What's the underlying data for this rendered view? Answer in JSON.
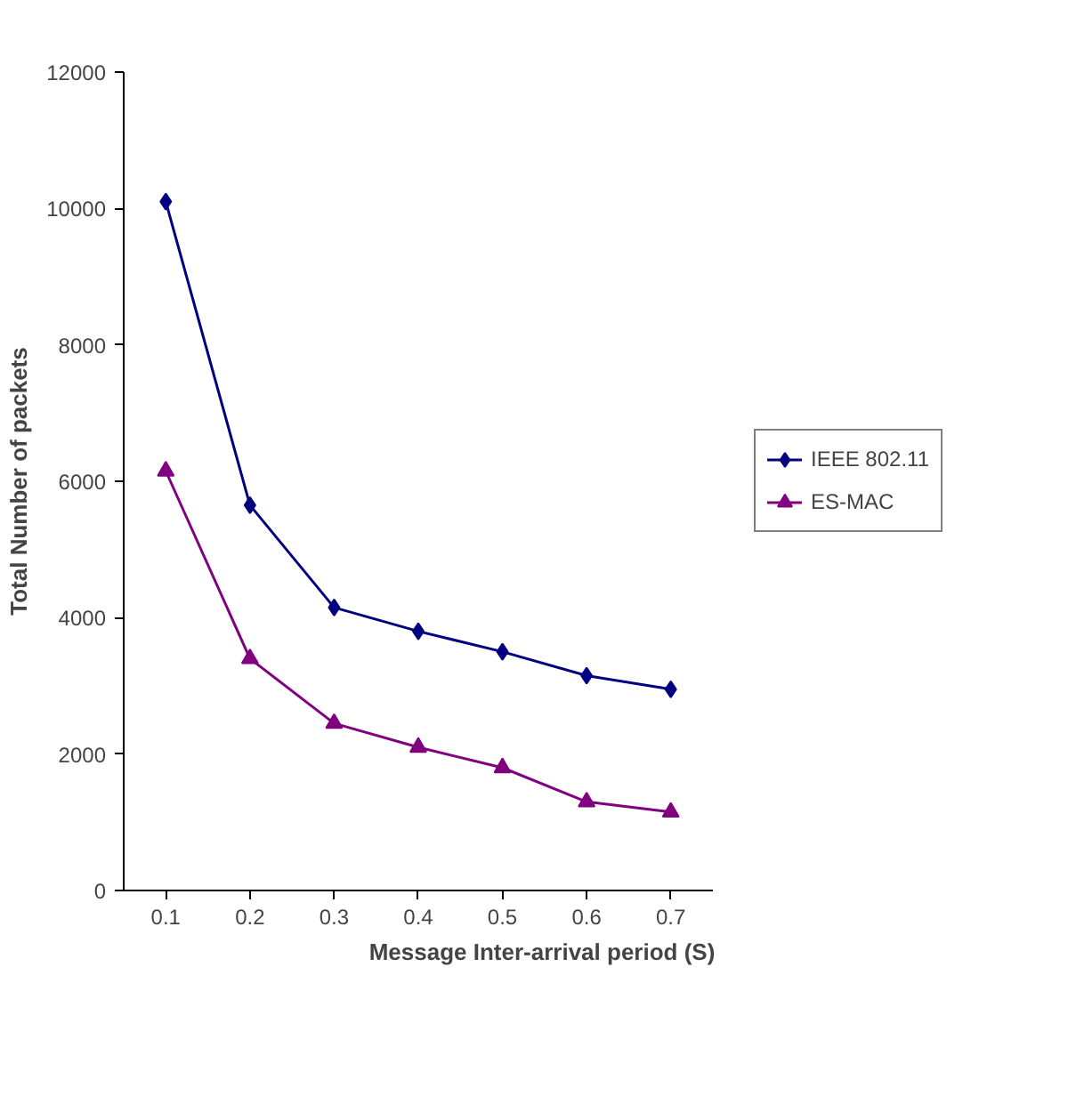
{
  "chart_data": {
    "type": "line",
    "xlabel": "Message Inter-arrival period (S)",
    "ylabel": "Total Number of packets",
    "categories": [
      "0.1",
      "0.2",
      "0.3",
      "0.4",
      "0.5",
      "0.6",
      "0.7"
    ],
    "series": [
      {
        "name": "IEEE 802.11",
        "color": "#000080",
        "marker": "diamond",
        "values": [
          10100,
          5650,
          4150,
          3800,
          3500,
          3150,
          2950
        ]
      },
      {
        "name": "ES-MAC",
        "color": "#800080",
        "marker": "triangle",
        "values": [
          6150,
          3400,
          2450,
          2100,
          1800,
          1300,
          1150
        ]
      }
    ],
    "ylim": [
      0,
      12000
    ],
    "yticks": [
      0,
      2000,
      4000,
      6000,
      8000,
      10000,
      12000
    ],
    "grid": false,
    "legend": "right",
    "line_style": "solid"
  }
}
